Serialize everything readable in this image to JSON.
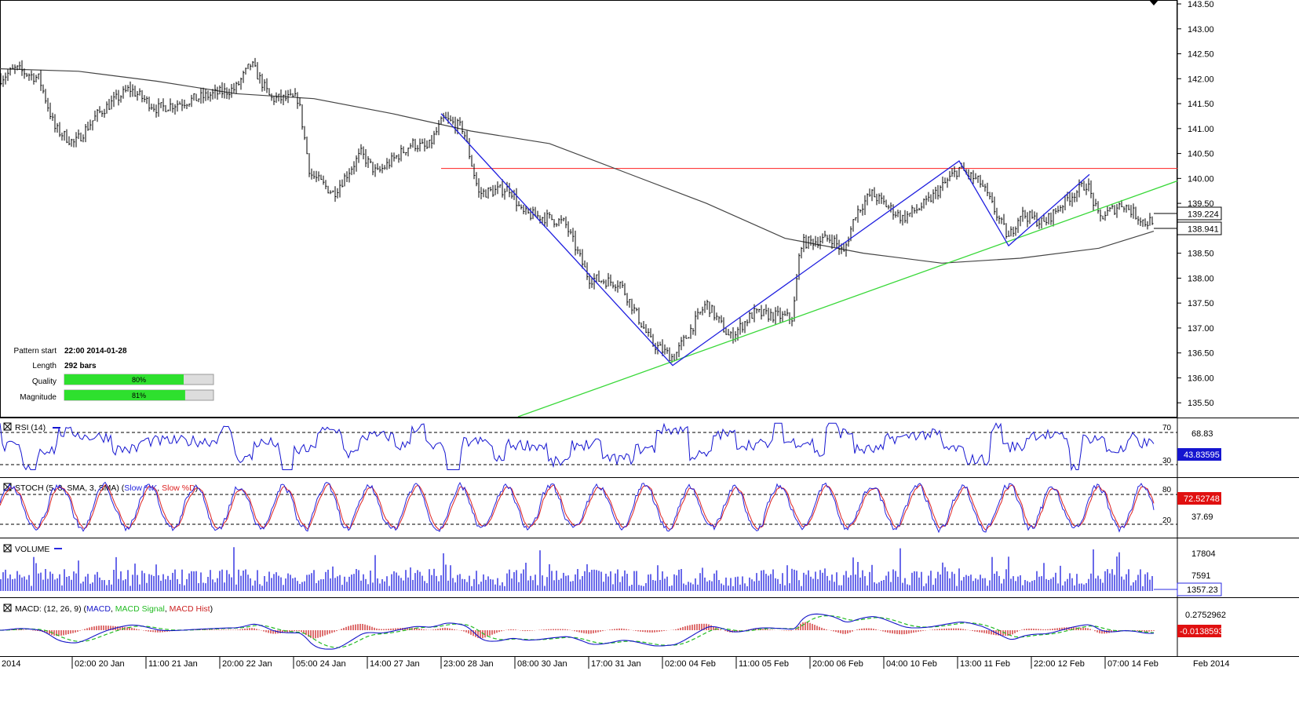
{
  "main": {
    "price_axis_labels": [
      "143.50",
      "143.00",
      "142.50",
      "142.00",
      "141.50",
      "141.00",
      "140.50",
      "140.00",
      "139.50",
      "139.00",
      "138.50",
      "138.00",
      "137.50",
      "137.00",
      "136.50",
      "136.00",
      "135.50"
    ],
    "y_range": [
      135.22,
      143.5
    ],
    "current_price": "139.224",
    "sma_value": "138.941",
    "resistance_level": 140.2,
    "pattern_info": [
      {
        "label": "Pattern start",
        "value": "22:00 2014-01-28"
      },
      {
        "label": "Length",
        "value": "292 bars"
      }
    ],
    "quality": {
      "label": "Quality",
      "value": "80%",
      "fraction": 0.8
    },
    "magnitude": {
      "label": "Magnitude",
      "value": "81%",
      "fraction": 0.81
    }
  },
  "rsi": {
    "title": "RSI (14)",
    "levels": [
      "70",
      "30"
    ],
    "axis_label": "68.83",
    "current": "43.83595"
  },
  "stoch": {
    "title_prefix": "STOCH (5, 3, SMA, 3, SMA) (",
    "k_label": "Slow %K",
    "separator": ", ",
    "d_label": "Slow %D",
    "title_suffix": ")",
    "levels": [
      "80",
      "20"
    ],
    "axis_label": "37.69",
    "current": "72.52748"
  },
  "volume": {
    "title": "VOLUME",
    "axis_labels": [
      "17804",
      "7591"
    ],
    "current": "1357.23"
  },
  "macd": {
    "title_prefix": "MACD: (12, 26, 9) (",
    "macd_label": "MACD",
    "signal_label": "MACD Signal",
    "hist_label": "MACD Hist",
    "title_suffix": ")",
    "axis_label": "0.2752962",
    "current": "-0.0138593"
  },
  "time_axis": [
    "2014",
    "02:00 20 Jan",
    "11:00 21 Jan",
    "20:00 22 Jan",
    "05:00 24 Jan",
    "14:00 27 Jan",
    "23:00 28 Jan",
    "08:00 30 Jan",
    "17:00 31 Jan",
    "02:00 04 Feb",
    "11:00 05 Feb",
    "20:00 06 Feb",
    "04:00 10 Feb",
    "13:00 11 Feb",
    "22:00 12 Feb",
    "07:00 14 Feb"
  ],
  "time_axis_end": "Feb 2014",
  "chart_data": {
    "type": "line",
    "title": "",
    "price_anchors": [
      {
        "x": 0,
        "y": 142.0
      },
      {
        "x": 20,
        "y": 142.2
      },
      {
        "x": 50,
        "y": 142.0
      },
      {
        "x": 70,
        "y": 141.0
      },
      {
        "x": 95,
        "y": 140.7
      },
      {
        "x": 125,
        "y": 141.3
      },
      {
        "x": 165,
        "y": 141.8
      },
      {
        "x": 200,
        "y": 141.4
      },
      {
        "x": 250,
        "y": 141.6
      },
      {
        "x": 300,
        "y": 141.8
      },
      {
        "x": 320,
        "y": 142.3
      },
      {
        "x": 345,
        "y": 141.6
      },
      {
        "x": 380,
        "y": 141.6
      },
      {
        "x": 395,
        "y": 140.1
      },
      {
        "x": 425,
        "y": 139.7
      },
      {
        "x": 460,
        "y": 140.5
      },
      {
        "x": 480,
        "y": 140.1
      },
      {
        "x": 525,
        "y": 140.7
      },
      {
        "x": 545,
        "y": 140.6
      },
      {
        "x": 565,
        "y": 141.2
      },
      {
        "x": 590,
        "y": 141.0
      },
      {
        "x": 610,
        "y": 139.7
      },
      {
        "x": 650,
        "y": 139.8
      },
      {
        "x": 665,
        "y": 139.3
      },
      {
        "x": 700,
        "y": 139.2
      },
      {
        "x": 720,
        "y": 139.1
      },
      {
        "x": 750,
        "y": 138.0
      },
      {
        "x": 790,
        "y": 137.9
      },
      {
        "x": 830,
        "y": 136.7
      },
      {
        "x": 858,
        "y": 136.4
      },
      {
        "x": 900,
        "y": 137.5
      },
      {
        "x": 930,
        "y": 136.8
      },
      {
        "x": 960,
        "y": 137.3
      },
      {
        "x": 1010,
        "y": 137.2
      },
      {
        "x": 1020,
        "y": 138.7
      },
      {
        "x": 1060,
        "y": 138.8
      },
      {
        "x": 1075,
        "y": 138.5
      },
      {
        "x": 1090,
        "y": 139.3
      },
      {
        "x": 1110,
        "y": 139.7
      },
      {
        "x": 1150,
        "y": 139.2
      },
      {
        "x": 1180,
        "y": 139.5
      },
      {
        "x": 1222,
        "y": 140.2
      },
      {
        "x": 1250,
        "y": 139.9
      },
      {
        "x": 1285,
        "y": 138.8
      },
      {
        "x": 1300,
        "y": 139.3
      },
      {
        "x": 1330,
        "y": 139.1
      },
      {
        "x": 1360,
        "y": 139.6
      },
      {
        "x": 1385,
        "y": 139.9
      },
      {
        "x": 1400,
        "y": 139.2
      },
      {
        "x": 1430,
        "y": 139.5
      },
      {
        "x": 1460,
        "y": 139.1
      },
      {
        "x": 1470,
        "y": 139.2
      }
    ],
    "sma": [
      {
        "x": 0,
        "y": 142.2
      },
      {
        "x": 100,
        "y": 142.15
      },
      {
        "x": 200,
        "y": 141.95
      },
      {
        "x": 300,
        "y": 141.7
      },
      {
        "x": 400,
        "y": 141.6
      },
      {
        "x": 500,
        "y": 141.3
      },
      {
        "x": 600,
        "y": 140.95
      },
      {
        "x": 700,
        "y": 140.7
      },
      {
        "x": 800,
        "y": 140.1
      },
      {
        "x": 900,
        "y": 139.5
      },
      {
        "x": 1000,
        "y": 138.8
      },
      {
        "x": 1100,
        "y": 138.5
      },
      {
        "x": 1200,
        "y": 138.3
      },
      {
        "x": 1300,
        "y": 138.4
      },
      {
        "x": 1400,
        "y": 138.6
      },
      {
        "x": 1470,
        "y": 138.941
      }
    ],
    "zigzag": [
      {
        "x": 562,
        "y": 141.3
      },
      {
        "x": 857,
        "y": 136.25
      },
      {
        "x": 1222,
        "y": 140.35
      },
      {
        "x": 1285,
        "y": 138.65
      },
      {
        "x": 1388,
        "y": 140.08
      }
    ],
    "trendline": [
      {
        "x": 660,
        "y": 135.22
      },
      {
        "x": 1500,
        "y": 139.95
      }
    ],
    "colors": {
      "candle": "#000000",
      "sma": "#444444",
      "zigzag": "#1f1fdf",
      "trend": "#39d839",
      "resistance": "#ff2020",
      "rsi": "#1515d0",
      "stoch_k": "#2222dd",
      "stoch_d": "#dd2222",
      "volume": "#2a2ae0",
      "macd": "#1515c8",
      "signal": "#22bb22",
      "hist": "#cc2222"
    }
  }
}
